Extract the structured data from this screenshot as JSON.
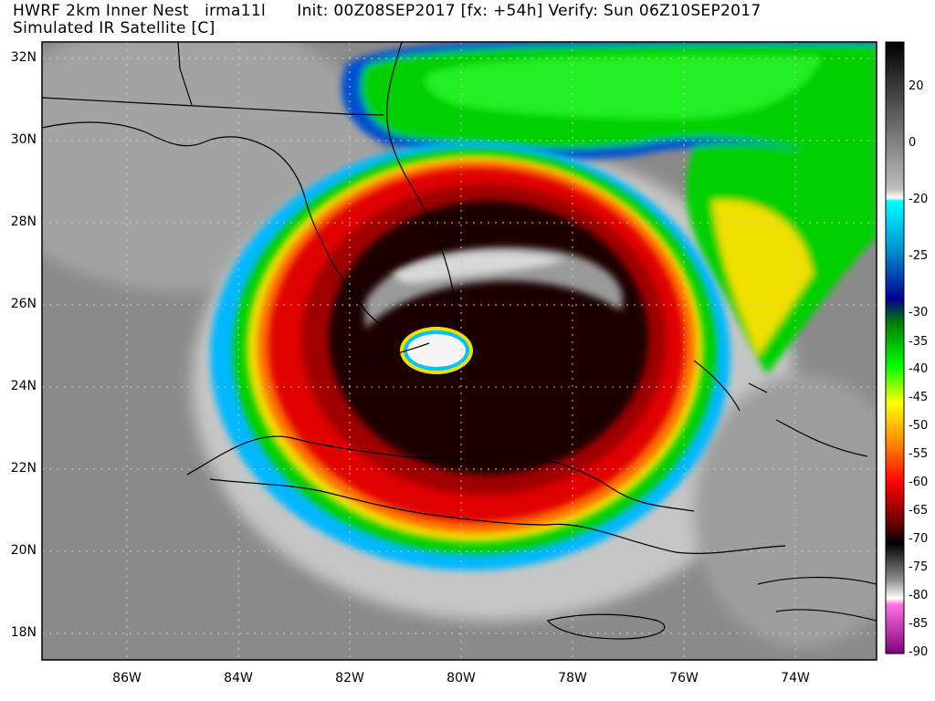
{
  "header": {
    "model": "HWRF 2km Inner Nest",
    "storm": "irma11l",
    "init": "Init: 00Z08SEP2017",
    "forecast_hour": "[fx: +54h]",
    "verify": "Verify: Sun 06Z10SEP2017",
    "product": "Simulated IR Satellite [C]"
  },
  "map": {
    "lat_labels": [
      "32N",
      "30N",
      "28N",
      "26N",
      "24N",
      "22N",
      "20N",
      "18N"
    ],
    "lon_labels": [
      "86W",
      "84W",
      "82W",
      "80W",
      "78W",
      "76W",
      "74W"
    ],
    "grid": true,
    "hurricane_eye": "south Florida / Florida Keys",
    "cloud_top_colors": {
      "coldest_eyewall": "#f5f5f5",
      "core": "#1a0000",
      "red": "#e00000",
      "orange": "#ff7000",
      "yellow": "#f5e600",
      "green": "#00e000",
      "blue": "#0040d0",
      "cyan": "#00e0ff",
      "background": "#8a8a8a"
    }
  },
  "colorbar": {
    "labels": [
      "20",
      "0",
      "-20",
      "-25",
      "-30",
      "-35",
      "-40",
      "-45",
      "-50",
      "-55",
      "-60",
      "-65",
      "-70",
      "-75",
      "-80",
      "-85",
      "-90"
    ]
  }
}
